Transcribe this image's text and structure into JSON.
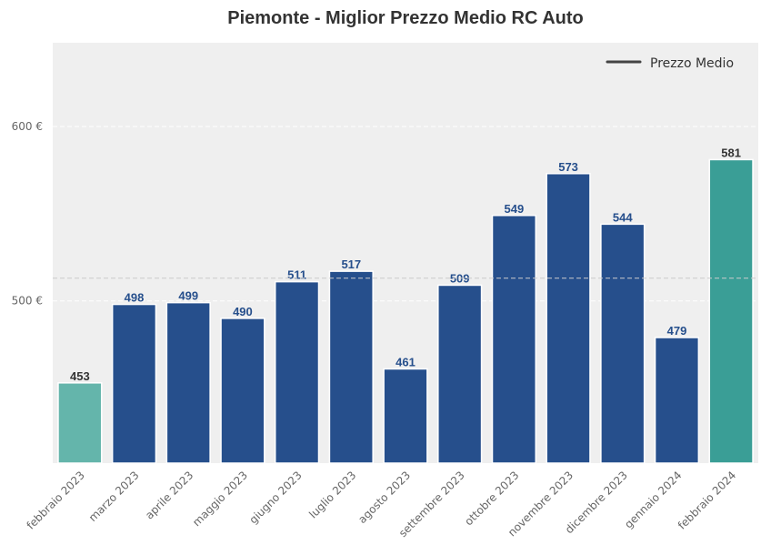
{
  "chart_data": {
    "type": "bar",
    "title": "Piemonte - Miglior Prezzo Medio RC Auto",
    "categories": [
      "febbraio 2023",
      "marzo 2023",
      "aprile 2023",
      "maggio 2023",
      "giugno 2023",
      "luglio 2023",
      "agosto 2023",
      "settembre 2023",
      "ottobre 2023",
      "novembre 2023",
      "dicembre 2023",
      "gennaio 2024",
      "febbraio 2024"
    ],
    "values": [
      453,
      498,
      499,
      490,
      511,
      517,
      461,
      509,
      549,
      573,
      544,
      479,
      581
    ],
    "value_labels": [
      "453",
      "498",
      "499",
      "490",
      "511",
      "517",
      "461",
      "509",
      "549",
      "573",
      "544",
      "479",
      "581"
    ],
    "bar_colors": [
      "#64b5ab",
      "#264f8c",
      "#264f8c",
      "#264f8c",
      "#264f8c",
      "#264f8c",
      "#264f8c",
      "#264f8c",
      "#264f8c",
      "#264f8c",
      "#264f8c",
      "#264f8c",
      "#3a9e96"
    ],
    "label_colors": [
      "#333333",
      "#264f8c",
      "#264f8c",
      "#264f8c",
      "#264f8c",
      "#264f8c",
      "#264f8c",
      "#264f8c",
      "#264f8c",
      "#264f8c",
      "#264f8c",
      "#264f8c",
      "#333333"
    ],
    "yticks": [
      500,
      600
    ],
    "ytick_labels": [
      "500 €",
      "600 €"
    ],
    "ylim": [
      407,
      648
    ],
    "reference_line": {
      "value": 513,
      "name": "Prezzo Medio"
    },
    "legend": {
      "label": "Prezzo Medio",
      "placement": "top-right"
    },
    "grid": true,
    "background_color": "#efefef"
  }
}
